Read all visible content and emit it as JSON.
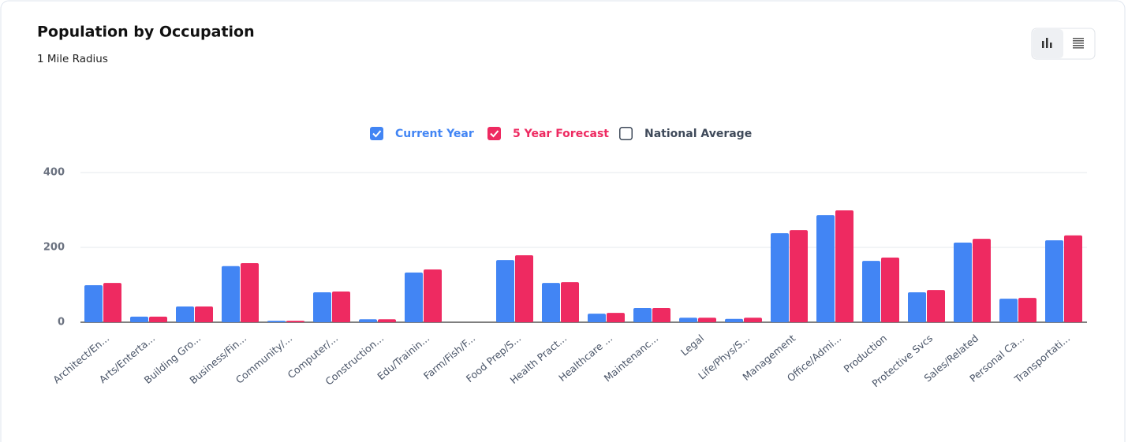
{
  "chart_data": {
    "type": "bar",
    "title": "Population by Occupation",
    "subtitle": "1 Mile Radius",
    "categories": [
      "Architect/En...",
      "Arts/Enterta...",
      "Building Gro...",
      "Business/Fin...",
      "Community/...",
      "Computer/...",
      "Construction...",
      "Edu/Trainin...",
      "Farm/Fish/F...",
      "Food Prep/S...",
      "Health Pract...",
      "Healthcare ...",
      "Maintenanc...",
      "Legal",
      "Life/Phys/S...",
      "Management",
      "Office/Admi...",
      "Production",
      "Protective Svcs",
      "Sales/Related",
      "Personal Ca...",
      "Transportati..."
    ],
    "series": [
      {
        "name": "Current Year",
        "color": "#4285f4",
        "checked": true,
        "values": [
          99,
          15,
          42,
          150,
          4,
          80,
          8,
          133,
          0,
          166,
          105,
          23,
          38,
          12,
          9,
          238,
          286,
          164,
          80,
          213,
          63,
          219
        ]
      },
      {
        "name": "5 Year Forecast",
        "color": "#ee2a61",
        "checked": true,
        "values": [
          105,
          15,
          42,
          158,
          4,
          82,
          8,
          141,
          0,
          179,
          107,
          25,
          38,
          12,
          12,
          246,
          299,
          173,
          86,
          223,
          65,
          232
        ]
      },
      {
        "name": "National Average",
        "color": "#3f4a5a",
        "checked": false,
        "values": [
          null,
          null,
          null,
          null,
          null,
          null,
          null,
          null,
          null,
          null,
          null,
          null,
          null,
          null,
          null,
          null,
          null,
          null,
          null,
          null,
          null,
          null
        ]
      }
    ],
    "ylim": [
      0,
      400
    ],
    "yticks": [
      0,
      200,
      400
    ],
    "grid": true
  }
}
